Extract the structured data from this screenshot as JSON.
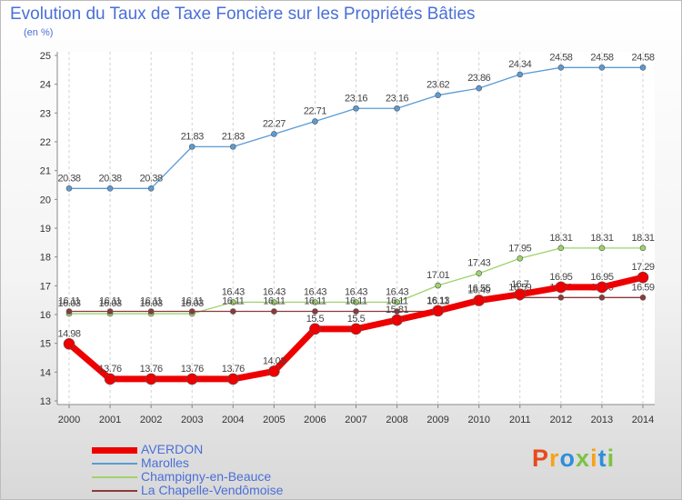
{
  "header": {
    "title": "Evolution du Taux de Taxe Foncière sur les Propriétés Bâties",
    "unit": "(en %)"
  },
  "logo": {
    "text": "Proxiti",
    "colors": [
      "#e84a1c",
      "#f7a21b",
      "#2f8fd8",
      "#7cc242"
    ]
  },
  "chart_data": {
    "type": "line",
    "title": "Evolution du Taux de Taxe Foncière sur les Propriétés Bâties",
    "ylabel": "(en %)",
    "x": [
      "2000",
      "2001",
      "2002",
      "2003",
      "2004",
      "2005",
      "2006",
      "2007",
      "2008",
      "2009",
      "2010",
      "2011",
      "2012",
      "2013",
      "2014"
    ],
    "ylim": [
      13,
      25
    ],
    "yticks": [
      "13",
      "14",
      "15",
      "16",
      "17",
      "18",
      "19",
      "20",
      "21",
      "22",
      "23",
      "24",
      "25"
    ],
    "grid": "vertical dashed",
    "legend_position": "bottom-left",
    "series": [
      {
        "name": "Marolles",
        "color": "#5b9bd5",
        "width": 1.3,
        "marker": 3,
        "values": [
          20.38,
          20.38,
          20.38,
          21.83,
          21.83,
          22.27,
          22.71,
          23.16,
          23.16,
          23.62,
          23.86,
          24.34,
          24.58,
          24.58,
          24.58
        ],
        "labels": [
          "20.38",
          "20.38",
          "20.38",
          "21.83",
          "21.83",
          "22.27",
          "22.71",
          "23.16",
          "23.16",
          "23.62",
          "23.86",
          "24.34",
          "24.58",
          "24.58",
          "24.58"
        ]
      },
      {
        "name": "Champigny-en-Beauce",
        "color": "#9ed36a",
        "width": 1.3,
        "marker": 3,
        "values": [
          16.03,
          16.03,
          16.03,
          16.03,
          16.43,
          16.43,
          16.43,
          16.43,
          16.43,
          17.01,
          17.43,
          17.95,
          18.31,
          18.31,
          18.31
        ],
        "labels": [
          "16.03",
          "16.03",
          "16.03",
          "16.03",
          "16.43",
          "16.43",
          "16.43",
          "16.43",
          "16.43",
          "17.01",
          "17.43",
          "17.95",
          "18.31",
          "18.31",
          "18.31"
        ]
      },
      {
        "name": "La Chapelle-Vendômoise",
        "color": "#8c3a3a",
        "width": 1.3,
        "marker": 3,
        "values": [
          16.11,
          16.11,
          16.11,
          16.11,
          16.11,
          16.11,
          16.11,
          16.11,
          16.11,
          16.11,
          16.55,
          16.59,
          16.59,
          16.59,
          16.59
        ],
        "labels": [
          "16.11",
          "16.11",
          "16.11",
          "16.11",
          "16.11",
          "16.11",
          "16.11",
          "16.11",
          "16.11",
          "16.11",
          "16.55",
          "16.59",
          "16.59",
          "16.59",
          "16.59"
        ]
      },
      {
        "name": "AVERDON",
        "color": "#ee0000",
        "width": 7,
        "marker": 6,
        "values": [
          14.98,
          13.76,
          13.76,
          13.76,
          13.76,
          14.03,
          15.5,
          15.5,
          15.81,
          16.13,
          16.49,
          16.7,
          16.95,
          16.95,
          17.29
        ],
        "labels": [
          "14.98",
          "13.76",
          "13.76",
          "13.76",
          "13.76",
          "14.03",
          "15.5",
          "15.5",
          "15.81",
          "16.13",
          "16.49",
          "16.7",
          "16.95",
          "16.95",
          "17.29"
        ]
      }
    ]
  }
}
